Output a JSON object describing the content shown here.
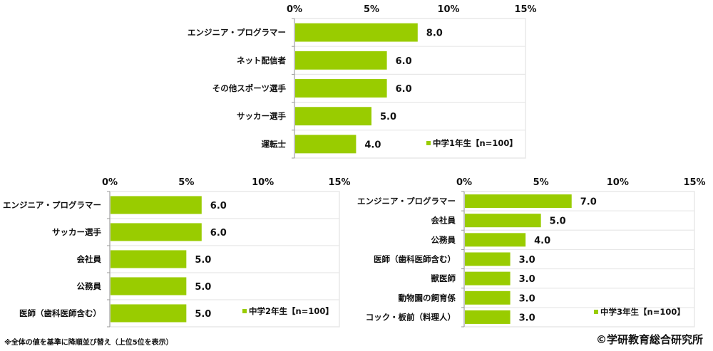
{
  "colors": {
    "bar": "#99cc00",
    "grid": "#e8e8e8",
    "axis": "#999999"
  },
  "chart_data": [
    {
      "type": "bar",
      "orientation": "horizontal",
      "title": "",
      "categories": [
        "エンジニア・プログラマー",
        "ネット配信者",
        "その他スポーツ選手",
        "サッカー選手",
        "運転士"
      ],
      "series": [
        {
          "name": "中学1年生【n=100】",
          "values": [
            8.0,
            6.0,
            6.0,
            5.0,
            4.0
          ]
        }
      ],
      "value_labels": [
        "8.0",
        "6.0",
        "6.0",
        "5.0",
        "4.0"
      ],
      "xlim": [
        0,
        15
      ],
      "tick_labels": [
        "0%",
        "5%",
        "10%",
        "15%"
      ],
      "tick_values": [
        0,
        5,
        10,
        15
      ],
      "legend": "bottom-right",
      "grid": true
    },
    {
      "type": "bar",
      "orientation": "horizontal",
      "title": "",
      "categories": [
        "エンジニア・プログラマー",
        "サッカー選手",
        "会社員",
        "公務員",
        "医師（歯科医師含む）"
      ],
      "series": [
        {
          "name": "中学2年生【n=100】",
          "values": [
            6.0,
            6.0,
            5.0,
            5.0,
            5.0
          ]
        }
      ],
      "value_labels": [
        "6.0",
        "6.0",
        "5.0",
        "5.0",
        "5.0"
      ],
      "xlim": [
        0,
        15
      ],
      "tick_labels": [
        "0%",
        "5%",
        "10%",
        "15%"
      ],
      "tick_values": [
        0,
        5,
        10,
        15
      ],
      "legend": "bottom-right",
      "grid": true
    },
    {
      "type": "bar",
      "orientation": "horizontal",
      "title": "",
      "categories": [
        "エンジニア・プログラマー",
        "会社員",
        "公務員",
        "医師（歯科医師含む）",
        "獣医師",
        "動物園の飼育係",
        "コック・板前（料理人）"
      ],
      "series": [
        {
          "name": "中学3年生【n=100】",
          "values": [
            7.0,
            5.0,
            4.0,
            3.0,
            3.0,
            3.0,
            3.0
          ]
        }
      ],
      "value_labels": [
        "7.0",
        "5.0",
        "4.0",
        "3.0",
        "3.0",
        "3.0",
        "3.0"
      ],
      "xlim": [
        0,
        15
      ],
      "tick_labels": [
        "0%",
        "5%",
        "10%",
        "15%"
      ],
      "tick_values": [
        0,
        5,
        10,
        15
      ],
      "legend": "bottom-right",
      "grid": true
    }
  ],
  "footnote": "※全体の値を基準に降順並び替え（上位5位を表示）",
  "credit": "©学研教育総合研究所"
}
